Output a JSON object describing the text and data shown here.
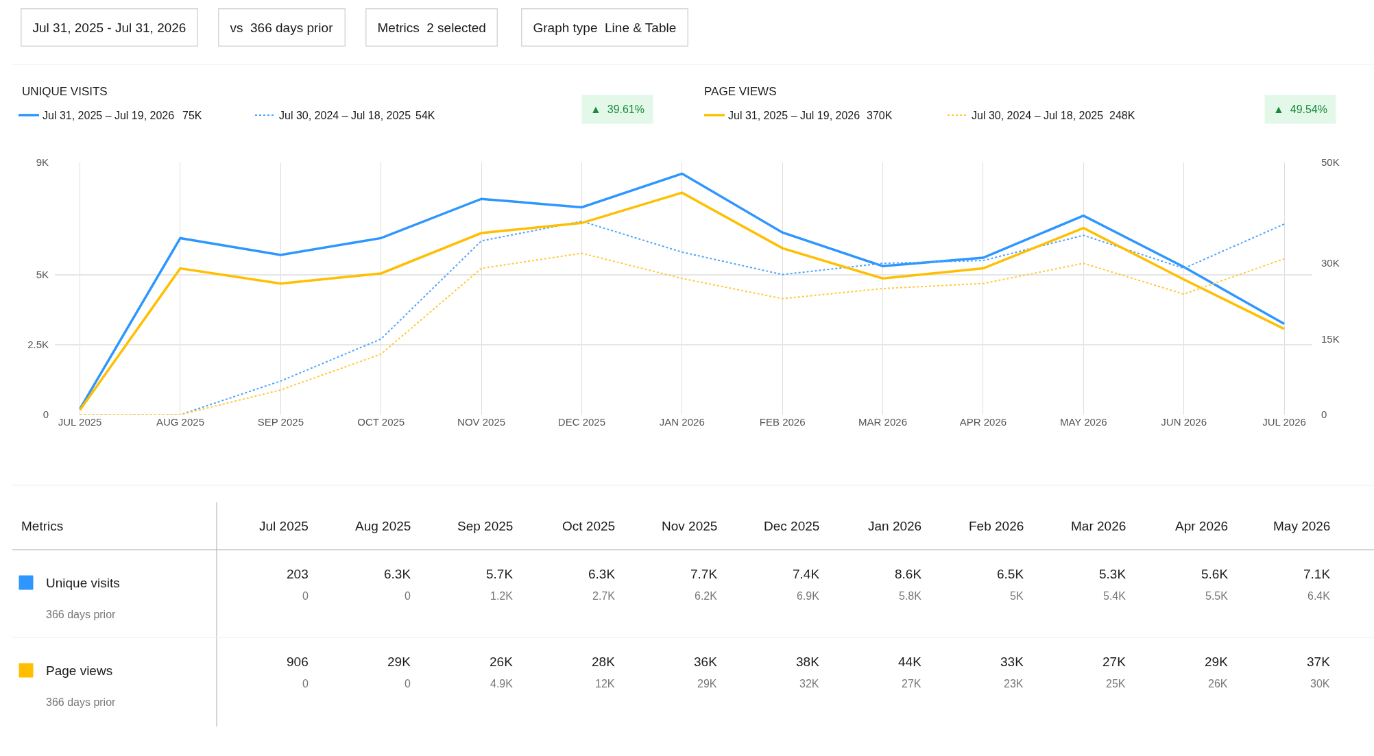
{
  "chart_data": {
    "type": "line",
    "categories": [
      "JUL 2025",
      "AUG 2025",
      "SEP 2025",
      "OCT 2025",
      "NOV 2025",
      "DEC 2025",
      "JAN 2026",
      "FEB 2026",
      "MAR 2026",
      "APR 2026",
      "MAY 2026",
      "JUN 2026",
      "JUL 2026"
    ],
    "series": [
      {
        "name": "Jul 31, 2025 – Jul 19, 2026",
        "color": "#2d96ff",
        "line_style": "solid",
        "values": [
          203,
          6300,
          5700,
          6300,
          7700,
          7400,
          8600,
          6500,
          5300,
          5600,
          7100,
          5270,
          3240
        ]
      },
      {
        "name": "Jul 30, 2024 – Jul 18, 2025",
        "color": "#4da3ff",
        "line_style": "dotted",
        "values": [
          0,
          0,
          1200,
          2700,
          6200,
          6900,
          5800,
          5000,
          5400,
          5500,
          6400,
          5220,
          6800
        ]
      },
      {
        "name": "Jul 31, 2025 – Jul 19, 2026",
        "color": "#ffbf00",
        "line_style": "solid",
        "axis": "y2",
        "values": [
          906,
          29000,
          26000,
          28000,
          36000,
          38000,
          44000,
          33000,
          27000,
          29000,
          37000,
          26800,
          17000
        ]
      },
      {
        "name": "Jul 30, 2024 – Jul 18, 2025",
        "color": "#ffc933",
        "line_style": "dotted",
        "axis": "y2",
        "values": [
          0,
          0,
          4900,
          12000,
          29000,
          32000,
          27000,
          23000,
          25000,
          26000,
          30000,
          23900,
          30900
        ]
      }
    ],
    "ylim": [
      0,
      9000
    ],
    "yticks": [
      0,
      {
        "value": 2500,
        "label": "2.5K"
      },
      {
        "value": 5000,
        "label": "5K"
      },
      {
        "value": 9000,
        "label": "9K"
      }
    ],
    "y2lim": [
      0,
      50000
    ],
    "y2ticks": [
      0,
      {
        "value": 15000,
        "label": "15K"
      },
      {
        "value": 30000,
        "label": "30K"
      },
      {
        "value": 50000,
        "label": "50K"
      }
    ],
    "grid": true,
    "legend": "top",
    "marker": "none",
    "annotations": [
      "Jul 31, 2025 - Jul 31, 2026",
      "vs  366 days prior",
      "Metrics  2 selected",
      "Graph type  Line & Table",
      "UNIQUE VISITS",
      "75K",
      "54K",
      "▲  39.61%",
      "PAGE VIEWS",
      "370K",
      "248K",
      "▲  49.54%",
      "Metrics",
      "Jul 2025",
      "Aug 2025",
      "Sep 2025",
      "Oct 2025",
      "Nov 2025",
      "Dec 2025",
      "Jan 2026",
      "Feb 2026",
      "Mar 2026",
      "Apr 2026",
      "May 2026",
      "Unique visits",
      "366 days prior",
      "Page views",
      "366 days prior",
      "203",
      "6.3K",
      "5.7K",
      "6.3K",
      "7.7K",
      "7.4K",
      "8.6K",
      "6.5K",
      "5.3K",
      "5.6K",
      "7.1K",
      "0",
      "0",
      "1.2K",
      "2.7K",
      "6.2K",
      "6.9K",
      "5.8K",
      "5K",
      "5.4K",
      "5.5K",
      "6.4K",
      "906",
      "29K",
      "26K",
      "28K",
      "36K",
      "38K",
      "44K",
      "33K",
      "27K",
      "29K",
      "37K",
      "0",
      "0",
      "4.9K",
      "12K",
      "29K",
      "32K",
      "27K",
      "23K",
      "25K",
      "26K",
      "30K"
    ]
  }
}
